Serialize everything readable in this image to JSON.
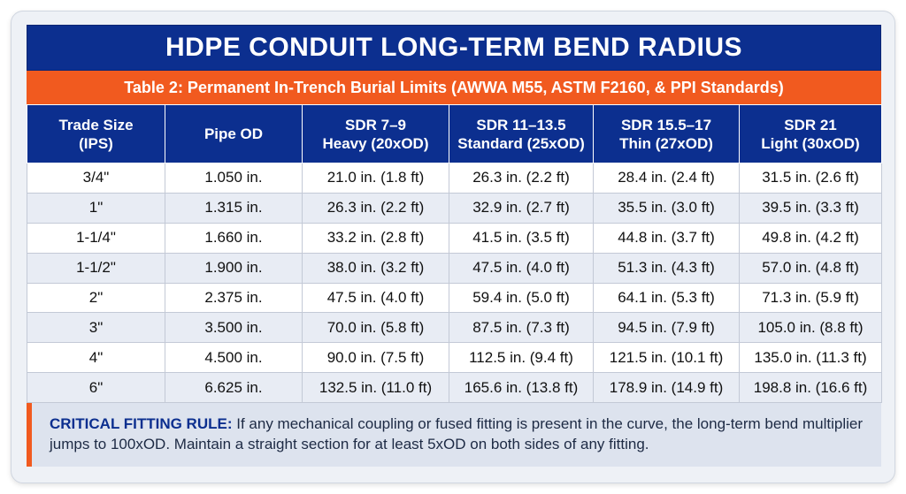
{
  "title": "HDPE CONDUIT LONG-TERM BEND RADIUS",
  "subtitle": "Table 2: Permanent In-Trench Burial Limits (AWWA M55, ASTM F2160, & PPI Standards)",
  "table": {
    "headers": [
      [
        "Trade Size",
        "(IPS)"
      ],
      [
        "Pipe OD"
      ],
      [
        "SDR 7–9",
        "Heavy (20xOD)"
      ],
      [
        "SDR 11–13.5",
        "Standard (25xOD)"
      ],
      [
        "SDR 15.5–17",
        "Thin (27xOD)"
      ],
      [
        "SDR 21",
        "Light (30xOD)"
      ]
    ],
    "rows": [
      [
        "3/4\"",
        "1.050 in.",
        "21.0 in. (1.8 ft)",
        "26.3 in. (2.2 ft)",
        "28.4 in. (2.4 ft)",
        "31.5 in. (2.6 ft)"
      ],
      [
        "1\"",
        "1.315 in.",
        "26.3 in. (2.2 ft)",
        "32.9 in. (2.7 ft)",
        "35.5 in. (3.0 ft)",
        "39.5 in. (3.3 ft)"
      ],
      [
        "1-1/4\"",
        "1.660 in.",
        "33.2 in. (2.8 ft)",
        "41.5 in. (3.5 ft)",
        "44.8 in. (3.7 ft)",
        "49.8 in. (4.2 ft)"
      ],
      [
        "1-1/2\"",
        "1.900 in.",
        "38.0 in. (3.2 ft)",
        "47.5 in. (4.0 ft)",
        "51.3 in. (4.3 ft)",
        "57.0 in. (4.8 ft)"
      ],
      [
        "2\"",
        "2.375 in.",
        "47.5 in. (4.0 ft)",
        "59.4 in. (5.0 ft)",
        "64.1 in. (5.3 ft)",
        "71.3 in. (5.9 ft)"
      ],
      [
        "3\"",
        "3.500 in.",
        "70.0 in. (5.8 ft)",
        "87.5 in. (7.3 ft)",
        "94.5 in. (7.9 ft)",
        "105.0 in. (8.8 ft)"
      ],
      [
        "4\"",
        "4.500 in.",
        "90.0 in. (7.5 ft)",
        "112.5 in. (9.4 ft)",
        "121.5 in. (10.1 ft)",
        "135.0 in. (11.3 ft)"
      ],
      [
        "6\"",
        "6.625 in.",
        "132.5 in. (11.0 ft)",
        "165.6 in. (13.8 ft)",
        "178.9 in. (14.9 ft)",
        "198.8 in. (16.6 ft)"
      ]
    ]
  },
  "rule": {
    "label": "CRITICAL FITTING RULE:",
    "text": "If any mechanical coupling or fused fitting is present in the curve, the long-term bend multiplier jumps to 100xOD. Maintain a straight section for at least 5xOD on both sides of any fitting."
  },
  "colors": {
    "navy": "#0c2f8f",
    "orange": "#f15a1f",
    "row_alt": "#e8ecf4"
  }
}
